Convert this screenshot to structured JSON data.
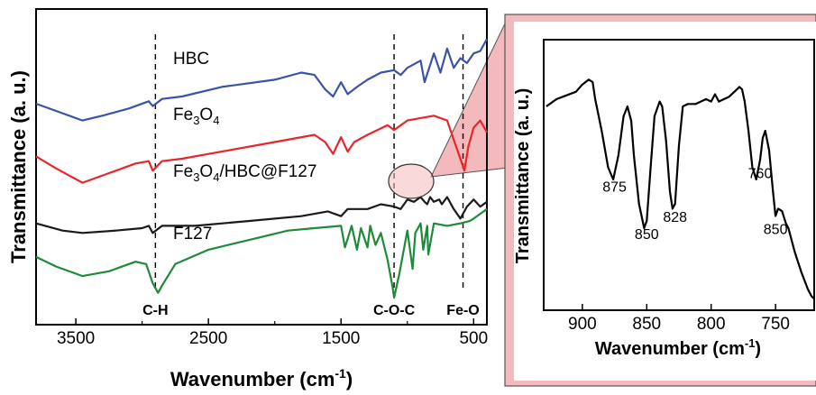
{
  "chart_data": [
    {
      "type": "line",
      "xlabel": "Wavenumber (cm",
      "xlabel_sup": "-1",
      "xlabel_close": ")",
      "ylabel": "Transmittance (a. u.)",
      "xlim": [
        3800,
        400
      ],
      "x_ticks": [
        3500,
        2500,
        1500,
        500
      ],
      "series": [
        {
          "name": "HBC",
          "color": "#3a53a4",
          "offset": 0.74,
          "x": [
            3800,
            3600,
            3450,
            3300,
            3100,
            2950,
            2920,
            2850,
            2700,
            2400,
            2000,
            1800,
            1700,
            1620,
            1560,
            1500,
            1450,
            1380,
            1300,
            1200,
            1100,
            1050,
            1000,
            900,
            870,
            800,
            750,
            700,
            650,
            600,
            550,
            500,
            450,
            400
          ],
          "y": [
            0.07,
            0.03,
            0.0,
            0.02,
            0.05,
            0.08,
            0.06,
            0.09,
            0.1,
            0.14,
            0.17,
            0.2,
            0.19,
            0.13,
            0.1,
            0.16,
            0.11,
            0.14,
            0.17,
            0.2,
            0.21,
            0.19,
            0.22,
            0.25,
            0.16,
            0.28,
            0.2,
            0.3,
            0.22,
            0.26,
            0.24,
            0.28,
            0.29,
            0.34
          ]
        },
        {
          "name": "Fe3O4",
          "label_main": "Fe",
          "label_sub1": "3",
          "label_mid": "O",
          "label_sub2": "4",
          "color": "#e8262a",
          "offset": 0.48,
          "x": [
            3800,
            3650,
            3450,
            3250,
            3050,
            2950,
            2920,
            2850,
            2700,
            2400,
            2000,
            1700,
            1620,
            1560,
            1500,
            1450,
            1400,
            1300,
            1150,
            1100,
            1000,
            900,
            800,
            700,
            650,
            600,
            570,
            540,
            500,
            450,
            400
          ],
          "y": [
            0.11,
            0.06,
            0.0,
            0.04,
            0.08,
            0.09,
            0.05,
            0.09,
            0.1,
            0.13,
            0.17,
            0.2,
            0.17,
            0.12,
            0.19,
            0.13,
            0.17,
            0.2,
            0.24,
            0.22,
            0.26,
            0.27,
            0.28,
            0.26,
            0.18,
            0.1,
            0.05,
            0.15,
            0.23,
            0.26,
            0.21
          ]
        },
        {
          "name": "Fe3O4/HBC@F127",
          "label_main": "Fe",
          "label_sub1": "3",
          "label_mid": "O",
          "label_sub2": "4",
          "label_rest": "/HBC@F127",
          "color": "#1a1a1a",
          "offset": 0.27,
          "x": [
            3800,
            3600,
            3450,
            3200,
            3000,
            2950,
            2920,
            2850,
            2600,
            2200,
            1800,
            1600,
            1500,
            1450,
            1300,
            1200,
            1100,
            1050,
            1000,
            950,
            900,
            870,
            850,
            828,
            800,
            760,
            740,
            700,
            650,
            600,
            550,
            500,
            450,
            400
          ],
          "y": [
            0.04,
            0.01,
            0.0,
            0.01,
            0.02,
            0.03,
            0.0,
            0.03,
            0.03,
            0.05,
            0.07,
            0.09,
            0.07,
            0.1,
            0.1,
            0.12,
            0.11,
            0.1,
            0.14,
            0.13,
            0.15,
            0.13,
            0.12,
            0.15,
            0.13,
            0.14,
            0.12,
            0.15,
            0.1,
            0.06,
            0.11,
            0.14,
            0.11,
            0.13
          ]
        },
        {
          "name": "F127",
          "color": "#1f8a3a",
          "offset": 0.0,
          "x": [
            3800,
            3650,
            3450,
            3250,
            3050,
            2970,
            2920,
            2880,
            2850,
            2750,
            2500,
            2200,
            1900,
            1700,
            1500,
            1470,
            1420,
            1380,
            1350,
            1300,
            1280,
            1240,
            1200,
            1150,
            1110,
            1100,
            1060,
            1000,
            960,
            940,
            900,
            880,
            850,
            842,
            800,
            700,
            600,
            530,
            500,
            450,
            400
          ],
          "y": [
            0.17,
            0.13,
            0.09,
            0.11,
            0.15,
            0.14,
            0.06,
            0.02,
            0.05,
            0.14,
            0.2,
            0.24,
            0.28,
            0.29,
            0.3,
            0.21,
            0.3,
            0.2,
            0.29,
            0.21,
            0.3,
            0.22,
            0.27,
            0.16,
            0.04,
            0.0,
            0.1,
            0.28,
            0.12,
            0.27,
            0.31,
            0.2,
            0.3,
            0.18,
            0.31,
            0.3,
            0.31,
            0.32,
            0.33,
            0.35,
            0.37
          ]
        }
      ],
      "annotations": [
        {
          "text": "C-H",
          "x": 2900
        },
        {
          "text": "C-O-C",
          "x": 1100
        },
        {
          "text": "Fe-O",
          "x": 580
        }
      ],
      "grid": false
    },
    {
      "type": "line",
      "inset": true,
      "xlabel": "Wavenumber (cm",
      "xlabel_sup": "-1",
      "xlabel_close": ")",
      "ylabel": "Transmittance (a. u.)",
      "xlim": [
        930,
        720
      ],
      "x_ticks": [
        900,
        850,
        800,
        750
      ],
      "series": [
        {
          "color": "#000000",
          "x": [
            928,
            920,
            915,
            905,
            900,
            895,
            892,
            890,
            885,
            880,
            876,
            872,
            868,
            865,
            862,
            860,
            856,
            852,
            850,
            847,
            844,
            840,
            838,
            835,
            832,
            830,
            828,
            825,
            822,
            818,
            812,
            808,
            804,
            800,
            797,
            794,
            790,
            786,
            782,
            778,
            776,
            774,
            771,
            768,
            765,
            762,
            760,
            758,
            755,
            752,
            750,
            748,
            745,
            742,
            740,
            735,
            730,
            725,
            722,
            720
          ],
          "y": [
            0.8,
            0.83,
            0.84,
            0.86,
            0.89,
            0.91,
            0.9,
            0.83,
            0.7,
            0.55,
            0.5,
            0.6,
            0.76,
            0.8,
            0.74,
            0.6,
            0.4,
            0.3,
            0.33,
            0.55,
            0.76,
            0.82,
            0.8,
            0.66,
            0.45,
            0.38,
            0.4,
            0.64,
            0.8,
            0.81,
            0.81,
            0.82,
            0.83,
            0.82,
            0.85,
            0.82,
            0.83,
            0.84,
            0.86,
            0.88,
            0.87,
            0.82,
            0.7,
            0.55,
            0.5,
            0.58,
            0.67,
            0.7,
            0.62,
            0.45,
            0.35,
            0.38,
            0.37,
            0.32,
            0.3,
            0.2,
            0.12,
            0.05,
            0.02,
            0.01
          ]
        }
      ],
      "peak_labels": [
        {
          "text": "875",
          "x": 875
        },
        {
          "text": "850",
          "x": 850
        },
        {
          "text": "828",
          "x": 828
        },
        {
          "text": "760",
          "x": 762
        },
        {
          "text": "850",
          "x": 750
        }
      ],
      "grid": false
    }
  ],
  "colors": {
    "inset_frame": "#f4b9bc",
    "callout_fill": "#f4b9bc",
    "callout_stroke": "#555555"
  }
}
